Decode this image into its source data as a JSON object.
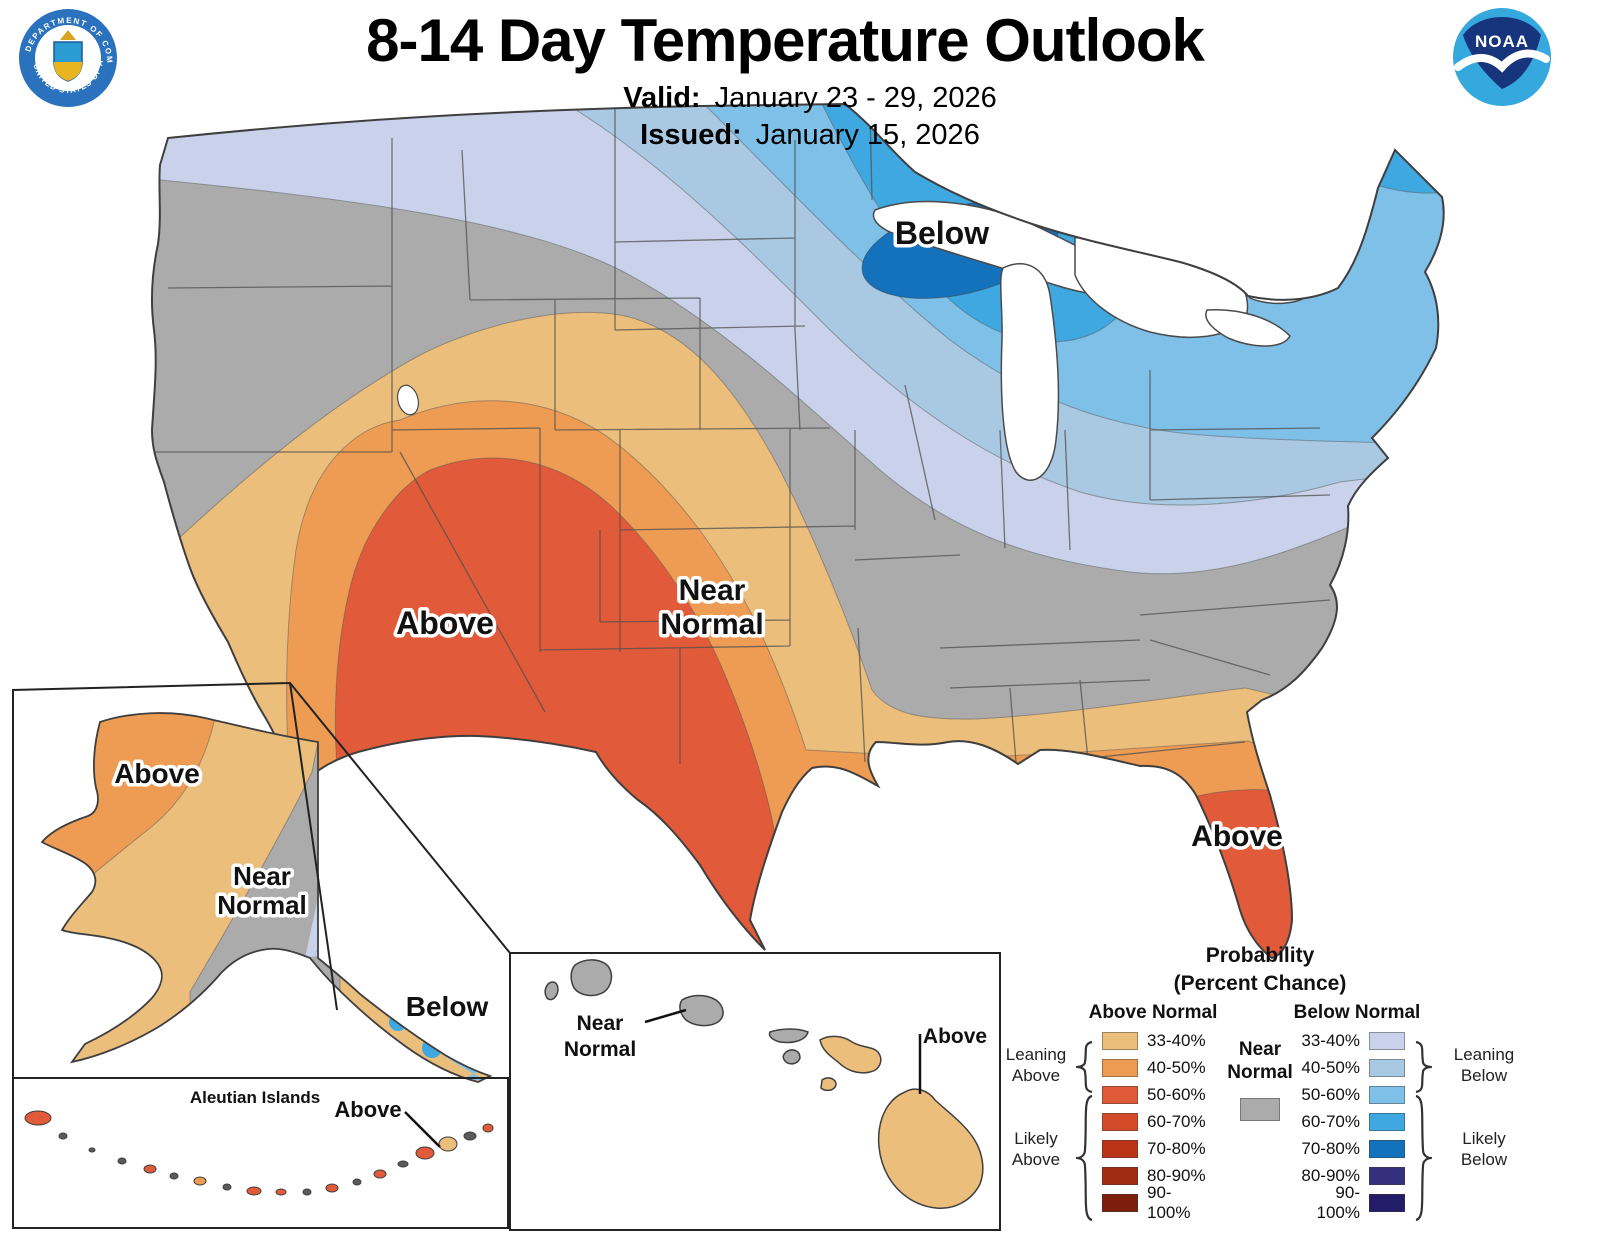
{
  "header": {
    "title": "8-14 Day Temperature Outlook",
    "valid_label": "Valid:",
    "valid_value": "January 23 - 29, 2026",
    "issued_label": "Issued:",
    "issued_value": "January 15, 2026",
    "doc_seal": {
      "ring_top": "DEPARTMENT OF COMMERCE",
      "ring_bottom": "UNITED STATES OF AMERICA"
    },
    "noaa_logo": {
      "text": "NOAA"
    }
  },
  "map": {
    "labels": {
      "conus_below": "Below",
      "conus_near_line1": "Near",
      "conus_near_line2": "Normal",
      "conus_above_southwest": "Above",
      "conus_above_florida": "Above",
      "alaska_above": "Above",
      "alaska_near_line1": "Near",
      "alaska_near_line2": "Normal",
      "alaska_below": "Below",
      "aleutian_title": "Aleutian Islands",
      "aleutian_above": "Above",
      "hawaii_near_line1": "Near",
      "hawaii_near_line2": "Normal",
      "hawaii_above": "Above"
    },
    "regions": [
      {
        "area": "Southwest / Four Corners into western and southern Texas",
        "category": "Above Normal",
        "peak_probability": "50-60%"
      },
      {
        "area": "Florida peninsula",
        "category": "Above Normal",
        "peak_probability": "50-60%"
      },
      {
        "area": "Gulf Coast and Southeast coastal strip",
        "category": "Above Normal",
        "peak_probability": "33-50%"
      },
      {
        "area": "Pacific Northwest, central Plains through Mid-South and Carolinas",
        "category": "Near Normal"
      },
      {
        "area": "Northern tier, Great Lakes and Northeast",
        "category": "Below Normal",
        "peak_probability": "70-80% near Lake Superior"
      },
      {
        "area": "Northwest Alaska",
        "category": "Above Normal"
      },
      {
        "area": "South-central Alaska",
        "category": "Near Normal"
      },
      {
        "area": "Alaska Panhandle",
        "category": "Below Normal"
      },
      {
        "area": "Aleutian Islands",
        "category": "Above Normal"
      },
      {
        "area": "Kauai, Niihau, Oahu, Molokai, Lanai (Hawaii)",
        "category": "Near Normal"
      },
      {
        "area": "Maui and Big Island (Hawaii)",
        "category": "Above Normal"
      }
    ]
  },
  "legend": {
    "title_line1": "Probability",
    "title_line2": "(Percent Chance)",
    "above_header": "Above Normal",
    "below_header": "Below Normal",
    "near_label_line1": "Near",
    "near_label_line2": "Normal",
    "ranges": [
      "33-40%",
      "40-50%",
      "50-60%",
      "60-70%",
      "70-80%",
      "80-90%",
      "90-100%"
    ],
    "above_colors": [
      "#ECBE7B",
      "#EE9C53",
      "#E15A39",
      "#D44B2A",
      "#BC3418",
      "#9E2B12",
      "#7D1D0B"
    ],
    "below_colors": [
      "#C9D2EA",
      "#A9C8E2",
      "#7FC0E8",
      "#3FA8E0",
      "#1472BC",
      "#35307E",
      "#221C69"
    ],
    "near_color": "#ABABAB",
    "group_labels": {
      "leaning_above": "Leaning Above",
      "likely_above": "Likely Above",
      "leaning_below": "Leaning Below",
      "likely_below": "Likely Below"
    }
  }
}
